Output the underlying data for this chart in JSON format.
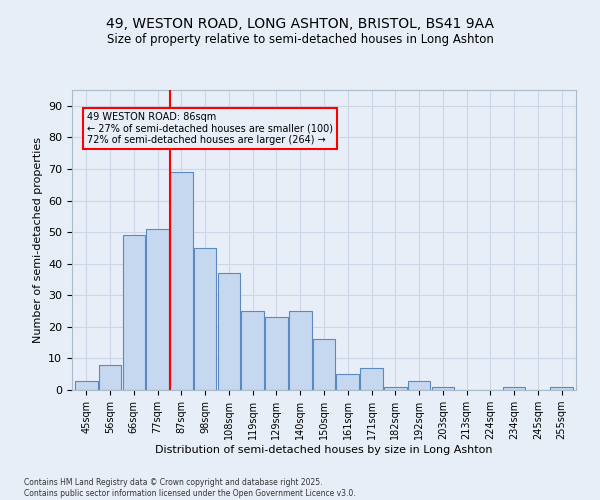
{
  "title1": "49, WESTON ROAD, LONG ASHTON, BRISTOL, BS41 9AA",
  "title2": "Size of property relative to semi-detached houses in Long Ashton",
  "xlabel": "Distribution of semi-detached houses by size in Long Ashton",
  "ylabel": "Number of semi-detached properties",
  "categories": [
    "45sqm",
    "56sqm",
    "66sqm",
    "77sqm",
    "87sqm",
    "98sqm",
    "108sqm",
    "119sqm",
    "129sqm",
    "140sqm",
    "150sqm",
    "161sqm",
    "171sqm",
    "182sqm",
    "192sqm",
    "203sqm",
    "213sqm",
    "224sqm",
    "234sqm",
    "245sqm",
    "255sqm"
  ],
  "values": [
    3,
    8,
    49,
    51,
    69,
    45,
    37,
    25,
    23,
    25,
    16,
    5,
    7,
    1,
    3,
    1,
    0,
    0,
    1,
    0,
    1
  ],
  "bar_color": "#c5d8f0",
  "bar_edge_color": "#5a8abf",
  "annotation_text": "49 WESTON ROAD: 86sqm\n← 27% of semi-detached houses are smaller (100)\n72% of semi-detached houses are larger (264) →",
  "ylim": [
    0,
    95
  ],
  "yticks": [
    0,
    10,
    20,
    30,
    40,
    50,
    60,
    70,
    80,
    90
  ],
  "grid_color": "#cdd6e8",
  "background_color": "#e8eef8",
  "footer": "Contains HM Land Registry data © Crown copyright and database right 2025.\nContains public sector information licensed under the Open Government Licence v3.0."
}
